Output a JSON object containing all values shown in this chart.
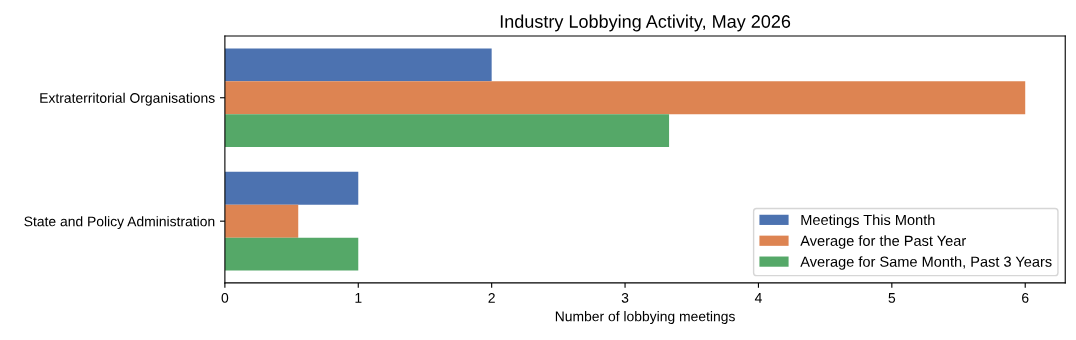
{
  "chart_data": {
    "type": "bar",
    "orientation": "horizontal",
    "title": "Industry Lobbying Activity, May 2026",
    "xlabel": "Number of lobbying meetings",
    "categories": [
      "Extraterritorial Organisations",
      "State and Policy Administration"
    ],
    "series": [
      {
        "name": "Meetings This Month",
        "color": "#4c72b0",
        "values": [
          2,
          1
        ]
      },
      {
        "name": "Average for the Past Year",
        "color": "#dd8452",
        "values": [
          6,
          0.55
        ]
      },
      {
        "name": "Average for Same Month, Past 3 Years",
        "color": "#55a868",
        "values": [
          3.33,
          1
        ]
      }
    ],
    "xlim": [
      0,
      6.3
    ],
    "xticks": [
      0,
      1,
      2,
      3,
      4,
      5,
      6
    ],
    "grid": false,
    "legend": "lower right"
  }
}
